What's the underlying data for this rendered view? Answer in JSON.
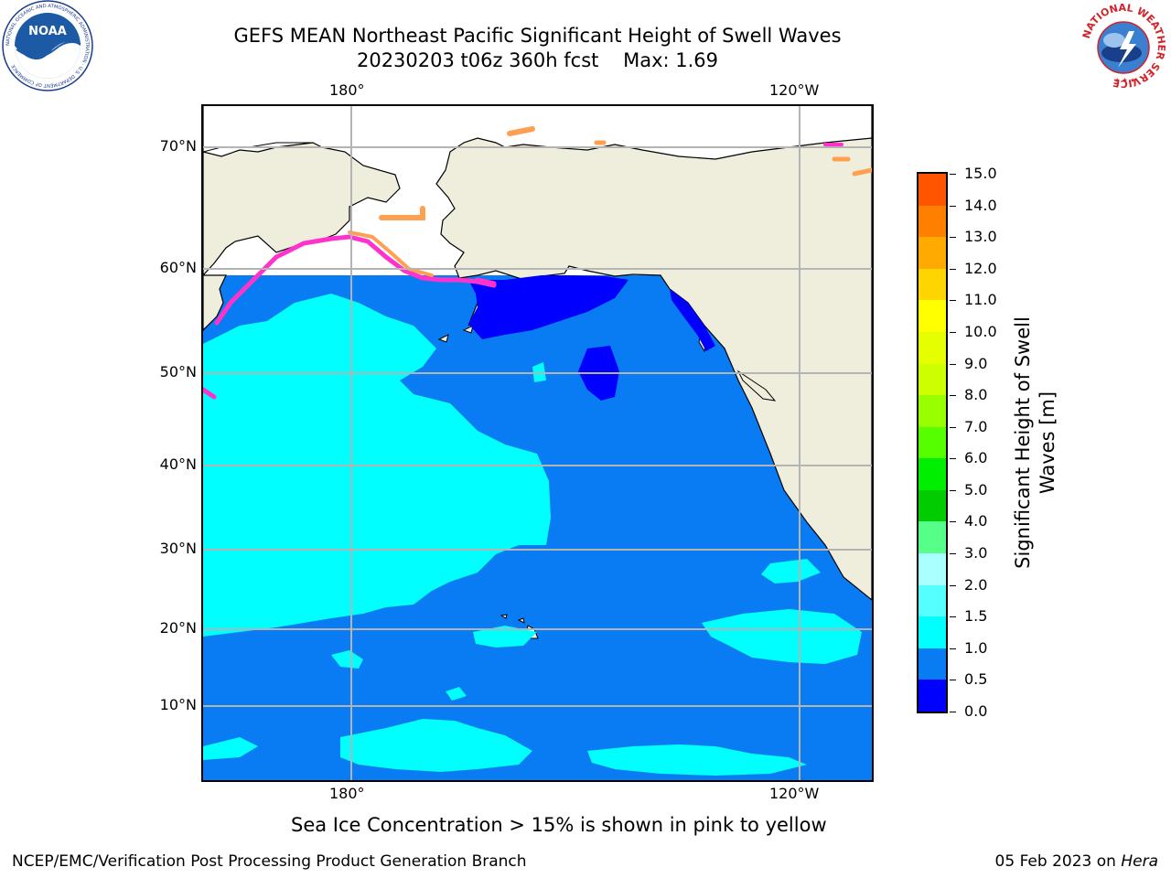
{
  "title": {
    "line1": "GEFS MEAN Northeast Pacific Significant Height of Swell Waves",
    "line2_date": "20230203 t06z 360h fcst",
    "line2_max": "Max: 1.69"
  },
  "map": {
    "lon_labels_top": [
      "180°",
      "120°W"
    ],
    "lon_labels_bottom": [
      "180°",
      "120°W"
    ],
    "lat_labels": [
      "70°N",
      "60°N",
      "50°N",
      "40°N",
      "30°N",
      "20°N",
      "10°N"
    ],
    "colors": {
      "ocean_0_5_1_0": "#0a7cf3",
      "ocean_1_0_1_5": "#00ffff",
      "ocean_0_0_0_5": "#0000ff",
      "land": "#efeedc",
      "ice_pink": "#ff33cc",
      "ice_orange": "#ffa050",
      "ice_yellow": "#ffd040",
      "gridline": "#b4b4b4"
    }
  },
  "colorbar": {
    "title": "Significant Height of Swell Waves [m]",
    "labels": [
      "15.0",
      "14.0",
      "13.0",
      "12.0",
      "11.0",
      "10.0",
      "9.0",
      "8.0",
      "7.0",
      "6.0",
      "5.0",
      "4.0",
      "3.0",
      "2.0",
      "1.5",
      "1.0",
      "0.5",
      "0.0"
    ],
    "segment_colors_top_to_bottom": [
      "#ff0000",
      "#ff2b00",
      "#ff5500",
      "#ff8000",
      "#ffaa00",
      "#ffd500",
      "#ffff00",
      "#e6ff00",
      "#ccff00",
      "#99ff00",
      "#55ff00",
      "#00ee00",
      "#00cc00",
      "#55ff88",
      "#aaffff",
      "#55ffff",
      "#00ffff",
      "#0a7cf3",
      "#0000ff"
    ]
  },
  "note": "Sea Ice Concentration > 15% is shown in pink to yellow",
  "footer": {
    "left": "NCEP/EMC/Verification Post Processing Product Generation Branch",
    "right_date": "05 Feb 2023 on",
    "right_machine": "Hera"
  },
  "logos": {
    "left": "NOAA",
    "left_ring_text": "NATIONAL OCEANIC AND ATMOSPHERIC ADMINISTRATION · U.S. DEPARTMENT OF COMMERCE",
    "right_ring_text": "NATIONAL WEATHER SERVICE"
  }
}
